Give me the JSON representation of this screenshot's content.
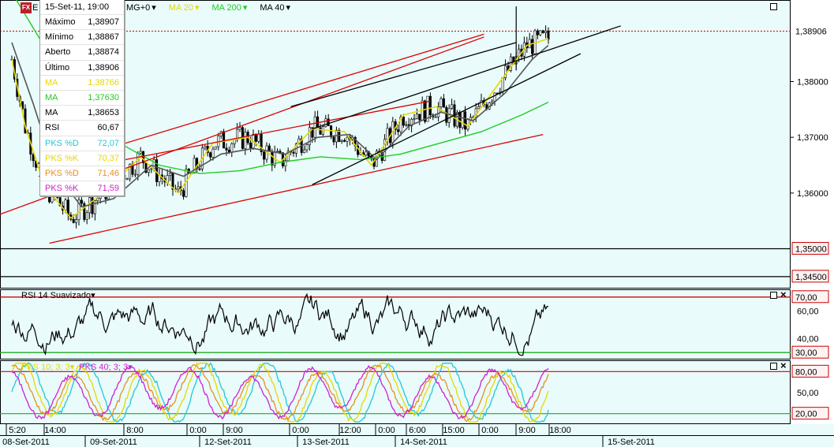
{
  "info_panel": {
    "header": "15-Set-11, 19:00",
    "rows": [
      {
        "label": "Máximo",
        "value": "1,38907",
        "color": "#000000"
      },
      {
        "label": "Mínimo",
        "value": "1,38867",
        "color": "#000000"
      },
      {
        "label": "Aberto",
        "value": "1,38874",
        "color": "#000000"
      },
      {
        "label": "Último",
        "value": "1,38906",
        "color": "#000000"
      },
      {
        "label": "MA",
        "value": "1,38766",
        "color": "#e6d800"
      },
      {
        "label": "MA",
        "value": "1,37630",
        "color": "#22cc22"
      },
      {
        "label": "MA",
        "value": "1,38653",
        "color": "#000000"
      },
      {
        "label": "RSI",
        "value": "60,67",
        "color": "#000000"
      },
      {
        "label": "PKS %D",
        "value": "72,07",
        "color": "#22c8d8"
      },
      {
        "label": "PKS %K",
        "value": "70,37",
        "color": "#e6d800"
      },
      {
        "label": "PKS %D",
        "value": "71,46",
        "color": "#e69020"
      },
      {
        "label": "PKS %K",
        "value": "71,59",
        "color": "#d020d0"
      }
    ]
  },
  "logo_text": "FX",
  "instrument_initial": "E",
  "indicator_bar": [
    {
      "label": "MG+0",
      "color": "#000000",
      "arrow": "▾"
    },
    {
      "label": "MA 20",
      "color": "#e6d800",
      "arrow": "▾"
    },
    {
      "label": "MA 200",
      "color": "#22cc22",
      "arrow": "▾"
    },
    {
      "label": "MA 40",
      "color": "#000000",
      "arrow": "▾"
    }
  ],
  "price_axis_labels": [
    "1,38000",
    "1,37000",
    "1,36000"
  ],
  "price_markers": [
    {
      "label": "1,38906",
      "value": 1.38906,
      "style": "current"
    },
    {
      "label": "1,35000",
      "value": 1.35,
      "style": "boxed"
    },
    {
      "label": "1,34500",
      "value": 1.345,
      "style": "boxed"
    }
  ],
  "rsi_panel": {
    "title": "RSI 14 Suavizado",
    "arrow": "▾",
    "axis_labels": [
      "60,00",
      "40,00"
    ],
    "levels": [
      {
        "label": "70,00",
        "value": 70
      },
      {
        "label": "30,00",
        "value": 30
      }
    ]
  },
  "pks_panel": {
    "title1": "PKS 10; 3; 3",
    "title2": "PKS 40; 3; 3",
    "arrow": "▾",
    "axis_labels": [
      "50,00"
    ],
    "levels": [
      {
        "label": "80,00",
        "value": 80
      },
      {
        "label": "20,00",
        "value": 20
      }
    ]
  },
  "time_axis": {
    "hours": [
      "5:20",
      "14:00",
      "8:00",
      "0:00",
      "9:00",
      "0:00",
      "12:00",
      "0:00",
      "6:00",
      "15:00",
      "0:00",
      "9:00",
      "18:00"
    ],
    "dates": [
      "08-Set-2011",
      "09-Set-2011",
      "12-Set-2011",
      "13-Set-2011",
      "14-Set-2011",
      "15-Set-2011"
    ]
  },
  "chart_data": {
    "type": "line",
    "title": "",
    "xlabel": "",
    "ylabel": "",
    "ylim": [
      1.343,
      1.3945
    ],
    "x_range": [
      "08-Set-2011 05:20",
      "15-Set-2011 19:00"
    ],
    "series": [
      {
        "name": "MA 20",
        "color": "#e6d800",
        "points": [
          [
            0,
            1.384
          ],
          [
            5,
            1.372
          ],
          [
            12,
            1.3615
          ],
          [
            22,
            1.3555
          ],
          [
            34,
            1.36
          ],
          [
            48,
            1.3665
          ],
          [
            62,
            1.36
          ],
          [
            75,
            1.369
          ],
          [
            88,
            1.37
          ],
          [
            100,
            1.3655
          ],
          [
            112,
            1.3715
          ],
          [
            124,
            1.371
          ],
          [
            134,
            1.365
          ],
          [
            146,
            1.374
          ],
          [
            158,
            1.3755
          ],
          [
            170,
            1.372
          ],
          [
            182,
            1.38
          ],
          [
            192,
            1.3865
          ],
          [
            200,
            1.3877
          ]
        ]
      },
      {
        "name": "MA 40",
        "color": "#555555",
        "points": [
          [
            0,
            1.387
          ],
          [
            8,
            1.376
          ],
          [
            16,
            1.364
          ],
          [
            26,
            1.3575
          ],
          [
            38,
            1.359
          ],
          [
            52,
            1.365
          ],
          [
            64,
            1.363
          ],
          [
            78,
            1.367
          ],
          [
            90,
            1.368
          ],
          [
            102,
            1.367
          ],
          [
            114,
            1.37
          ],
          [
            126,
            1.3705
          ],
          [
            136,
            1.366
          ],
          [
            148,
            1.372
          ],
          [
            160,
            1.3745
          ],
          [
            172,
            1.373
          ],
          [
            184,
            1.378
          ],
          [
            194,
            1.384
          ],
          [
            200,
            1.3865
          ]
        ]
      },
      {
        "name": "MA 200",
        "color": "#22cc22",
        "points": [
          [
            0,
            1.396
          ],
          [
            20,
            1.38
          ],
          [
            40,
            1.369
          ],
          [
            55,
            1.365
          ],
          [
            70,
            1.3635
          ],
          [
            85,
            1.364
          ],
          [
            100,
            1.3655
          ],
          [
            115,
            1.3665
          ],
          [
            130,
            1.366
          ],
          [
            145,
            1.367
          ],
          [
            160,
            1.369
          ],
          [
            175,
            1.371
          ],
          [
            190,
            1.374
          ],
          [
            200,
            1.3763
          ]
        ]
      }
    ],
    "trend_lines": [
      {
        "color": "#dd0000",
        "from": [
          -27,
          1.3522
        ],
        "to": [
          176,
          1.388
        ]
      },
      {
        "color": "#dd0000",
        "from": [
          12,
          1.3645
        ],
        "to": [
          176,
          1.3885
        ]
      },
      {
        "color": "#dd0000",
        "from": [
          10,
          1.363
        ],
        "to": [
          156,
          1.3765
        ]
      },
      {
        "color": "#dd0000",
        "from": [
          14,
          1.351
        ],
        "to": [
          198,
          1.3705
        ]
      },
      {
        "color": "#000000",
        "from": [
          112,
          1.3615
        ],
        "to": [
          212,
          1.385
        ]
      },
      {
        "color": "#000000",
        "from": [
          112,
          1.3715
        ],
        "to": [
          227,
          1.39
        ]
      },
      {
        "color": "#000000",
        "from": [
          104,
          1.3755
        ],
        "to": [
          188,
          1.387
        ]
      }
    ],
    "horizontal_lines": [
      {
        "value": 1.35,
        "color": "#000000"
      },
      {
        "value": 1.345,
        "color": "#000000"
      },
      {
        "value": 1.38906,
        "color": "#cc0000",
        "dashed": true
      }
    ],
    "candles_count": 200,
    "rsi_range": [
      25,
      75
    ],
    "pks_range": [
      5,
      95
    ]
  }
}
